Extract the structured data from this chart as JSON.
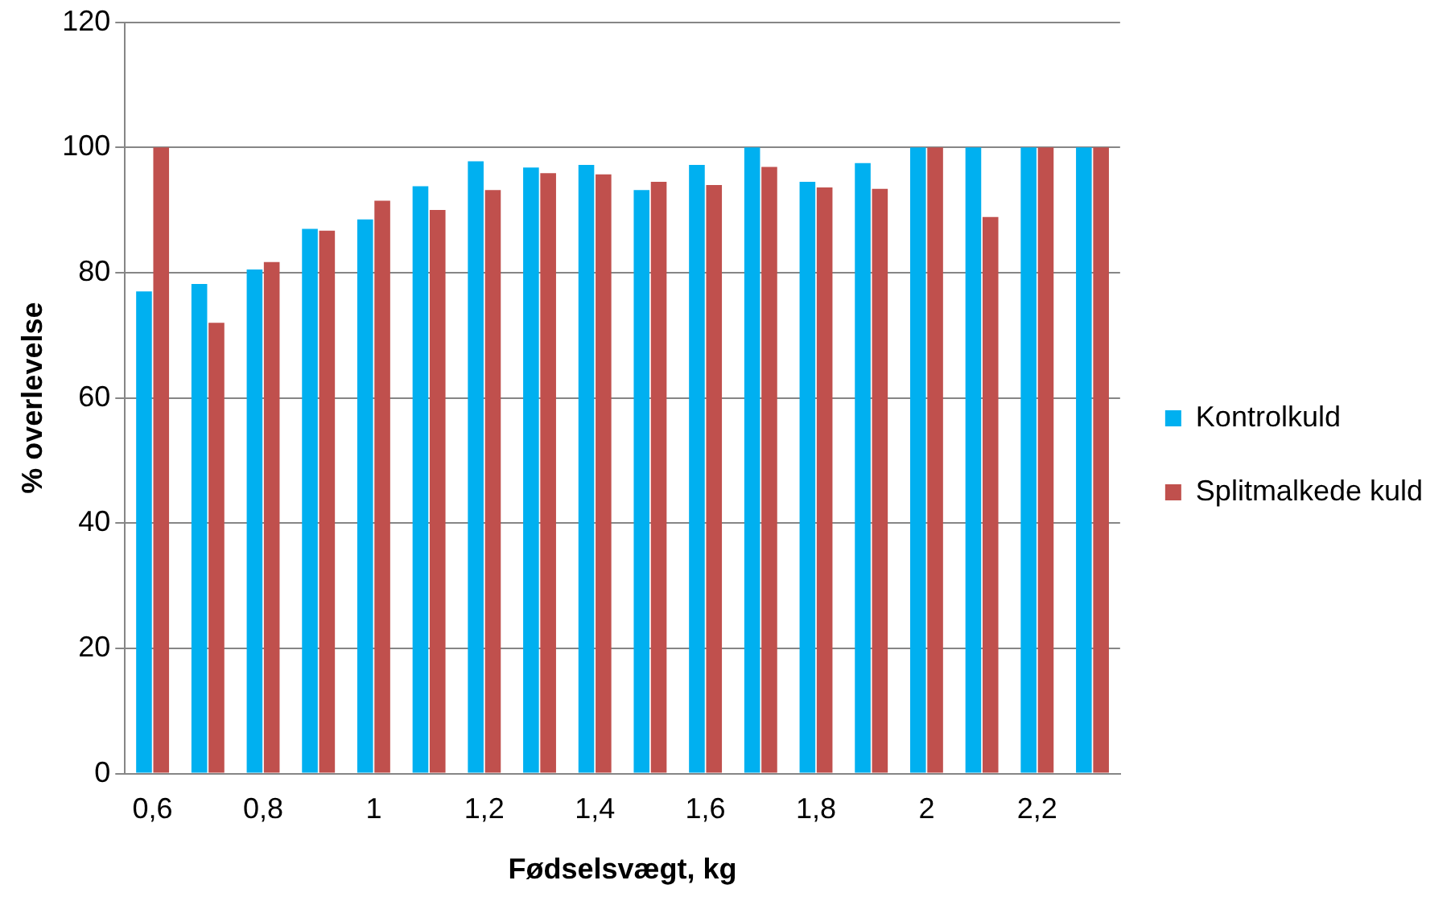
{
  "chart_data": {
    "type": "bar",
    "xlabel": "Fødselsvægt, kg",
    "ylabel": "% overlevelse",
    "categories": [
      "0,6",
      null,
      "0,8",
      null,
      "1",
      null,
      "1,2",
      null,
      "1,4",
      null,
      "1,6",
      null,
      "1,8",
      null,
      "2",
      null,
      "2,2",
      null
    ],
    "series": [
      {
        "name": "Kontrolkuld",
        "color": "#00b0f0",
        "values": [
          77,
          78.2,
          80.5,
          87,
          88.5,
          93.8,
          97.8,
          96.8,
          97.2,
          93.2,
          97.2,
          100,
          94.5,
          97.5,
          100,
          100,
          100,
          100
        ]
      },
      {
        "name": "Splitmalkede kuld",
        "color": "#c0504d",
        "values": [
          100,
          72,
          81.7,
          86.7,
          91.5,
          90,
          93.2,
          95.9,
          95.7,
          94.5,
          94,
          96.9,
          93.6,
          93.4,
          100,
          88.9,
          100,
          100
        ]
      }
    ],
    "ylim": [
      0,
      120
    ],
    "yticks": [
      0,
      20,
      40,
      60,
      80,
      100,
      120
    ],
    "grid": "y",
    "legend": "right"
  }
}
